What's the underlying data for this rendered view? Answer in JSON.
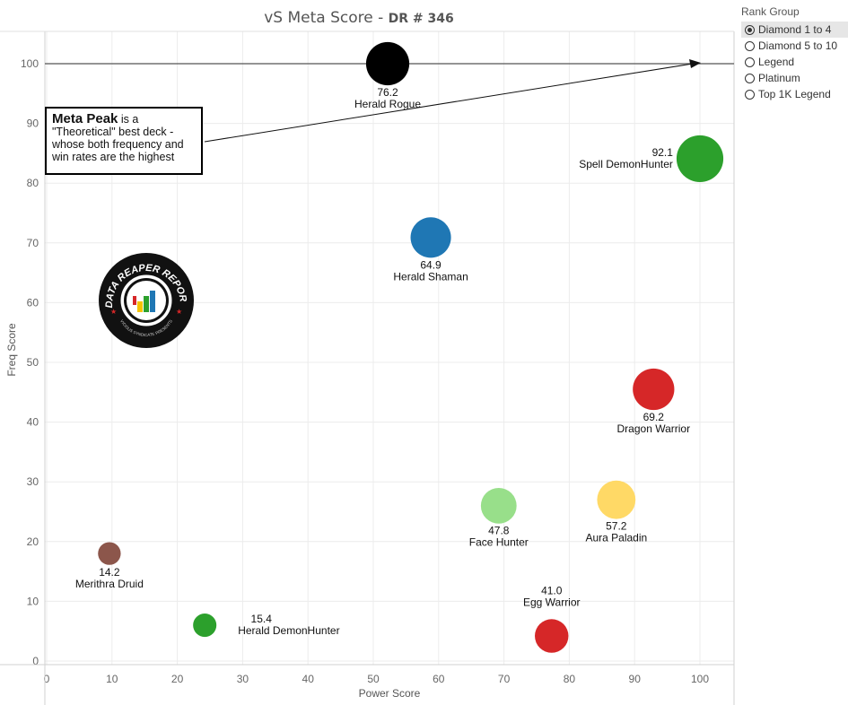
{
  "title": {
    "main": "vS Meta Score",
    "sub": "DR # 346"
  },
  "legend": {
    "title": "Rank Group",
    "options": [
      {
        "label": "Diamond 1 to 4",
        "selected": true
      },
      {
        "label": "Diamond 5 to 10",
        "selected": false
      },
      {
        "label": "Legend",
        "selected": false
      },
      {
        "label": "Platinum",
        "selected": false
      },
      {
        "label": "Top 1K Legend",
        "selected": false
      }
    ]
  },
  "annotation": {
    "bold": "Meta Peak",
    "text": " is a \"Theoretical\" best deck - whose both frequency and win rates are the highest"
  },
  "logo": {
    "text": "DATA REAPER REPORT",
    "subtext": "VICIOUS SYNDICATE PRESENTS"
  },
  "chart_data": {
    "type": "scatter",
    "title": "vS Meta Score - DR # 346",
    "xlabel": "Power Score",
    "ylabel": "Freq Score",
    "xlim": [
      0,
      105
    ],
    "ylim": [
      0,
      105
    ],
    "xticks": [
      0,
      10,
      20,
      30,
      40,
      50,
      60,
      70,
      80,
      90,
      100
    ],
    "yticks": [
      0,
      10,
      20,
      30,
      40,
      50,
      60,
      70,
      80,
      90,
      100
    ],
    "reference_line": {
      "axis": "y",
      "value": 100
    },
    "grid": true,
    "points": [
      {
        "name": "Herald Rogue",
        "x": 52.2,
        "y": 100,
        "score": "76.2",
        "color": "#000000",
        "label": "below"
      },
      {
        "name": "Spell DemonHunter",
        "x": 100,
        "y": 84.1,
        "score": "92.1",
        "color": "#2ca02c",
        "label": "left"
      },
      {
        "name": "Herald Shaman",
        "x": 58.8,
        "y": 70.9,
        "score": "64.9",
        "color": "#1f77b4",
        "label": "below"
      },
      {
        "name": "Dragon Warrior",
        "x": 92.9,
        "y": 45.5,
        "score": "69.2",
        "color": "#d62728",
        "label": "below"
      },
      {
        "name": "Aura Paladin",
        "x": 87.2,
        "y": 27.0,
        "score": "57.2",
        "color": "#ffd966",
        "label": "below"
      },
      {
        "name": "Face Hunter",
        "x": 69.2,
        "y": 26.0,
        "score": "47.8",
        "color": "#98df8a",
        "label": "below"
      },
      {
        "name": "Merithra Druid",
        "x": 9.6,
        "y": 18.0,
        "score": "14.2",
        "color": "#8c564b",
        "label": "below"
      },
      {
        "name": "Herald DemonHunter",
        "x": 24.2,
        "y": 6.0,
        "score": "15.4",
        "color": "#2ca02c",
        "label": "right"
      },
      {
        "name": "Egg Warrior",
        "x": 77.3,
        "y": 4.2,
        "score": "41.0",
        "color": "#d62728",
        "label": "above"
      }
    ]
  }
}
